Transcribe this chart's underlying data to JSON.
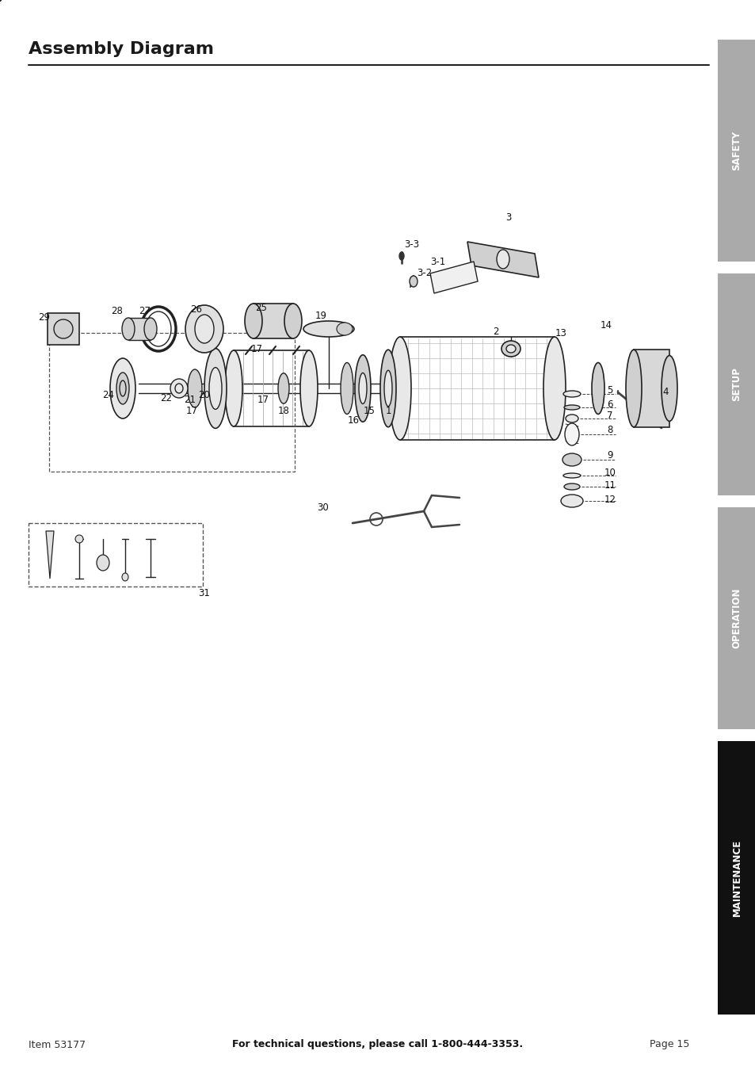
{
  "title": "Assembly Diagram",
  "bg_color": "#ffffff",
  "sidebar_labels": [
    "SAFETY",
    "SETUP",
    "OPERATION",
    "MAINTENANCE"
  ],
  "sidebar_colors": [
    "#aaaaaa",
    "#aaaaaa",
    "#aaaaaa",
    "#111111"
  ],
  "sidebar_text_colors": [
    "#ffffff",
    "#ffffff",
    "#ffffff",
    "#ffffff"
  ],
  "footer_left": "Item 53177",
  "footer_center": "For technical questions, please call 1-800-444-3353.",
  "footer_right": "Page 15",
  "title_fontsize": 16,
  "footer_fontsize": 9
}
